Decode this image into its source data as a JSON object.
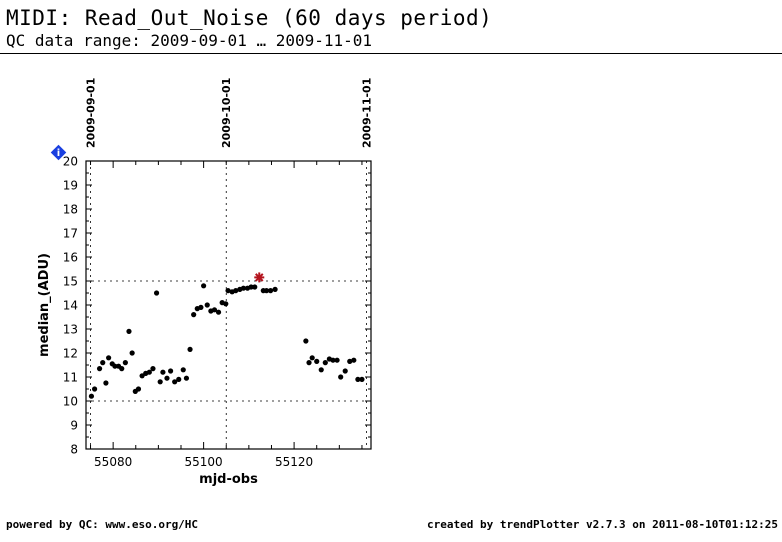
{
  "header": {
    "title": "MIDI: Read_Out_Noise (60 days period)",
    "subtitle": "QC data range: 2009-09-01 … 2009-11-01"
  },
  "footer": {
    "left": "powered by QC: www.eso.org/HC",
    "right": "created by trendPlotter v2.7.3 on 2011-08-10T01:12:25"
  },
  "info_badge": {
    "icon": "info-diamond-icon",
    "label": "i",
    "color": "#1a3fe0"
  },
  "chart_data": {
    "type": "scatter",
    "xlabel": "mjd-obs",
    "ylabel": "median_(ADU)",
    "xlim": [
      55074,
      55137
    ],
    "ylim": [
      8,
      20
    ],
    "xticks": [
      55080,
      55100,
      55120
    ],
    "yticks": [
      8,
      9,
      10,
      11,
      12,
      13,
      14,
      15,
      16,
      17,
      18,
      19,
      20
    ],
    "reference_lines_y": [
      10,
      15
    ],
    "date_markers": [
      {
        "label": "2009-09-01",
        "x": 55075.0
      },
      {
        "label": "2009-10-01",
        "x": 55105.0
      },
      {
        "label": "2009-11-01",
        "x": 55136.0
      }
    ],
    "series": [
      {
        "marker": "dot",
        "color": "#000000",
        "x": [
          55075.2,
          55075.9,
          55077.0,
          55077.7,
          55078.4,
          55079.0,
          55079.8,
          55080.4,
          55081.2,
          55081.9,
          55082.7,
          55083.5,
          55084.2,
          55084.9,
          55085.6,
          55086.4,
          55087.2,
          55088.0,
          55088.8,
          55089.6,
          55090.4,
          55091.0,
          55091.9,
          55092.7,
          55093.6,
          55094.5,
          55095.5,
          55096.2,
          55097.0,
          55097.8,
          55098.6,
          55099.4,
          55100.0,
          55100.8,
          55101.6,
          55102.4,
          55103.3,
          55104.1,
          55104.9,
          55105.4,
          55106.3,
          55107.1,
          55108.0,
          55108.8,
          55109.7,
          55110.5,
          55111.3,
          55113.2,
          55113.9,
          55114.8,
          55115.8,
          55122.6,
          55123.3,
          55124.0,
          55125.0,
          55126.0,
          55126.9,
          55127.8,
          55128.6,
          55129.5,
          55130.3,
          55131.3,
          55132.3,
          55133.2,
          55134.1,
          55135.0
        ],
        "y": [
          10.2,
          10.5,
          11.35,
          11.6,
          10.75,
          11.8,
          11.55,
          11.45,
          11.45,
          11.35,
          11.6,
          12.9,
          12.0,
          10.4,
          10.5,
          11.05,
          11.15,
          11.2,
          11.35,
          14.5,
          10.8,
          11.2,
          10.95,
          11.25,
          10.8,
          10.9,
          11.3,
          10.95,
          12.15,
          13.6,
          13.85,
          13.9,
          14.8,
          14.0,
          13.75,
          13.8,
          13.7,
          14.1,
          14.05,
          14.6,
          14.55,
          14.6,
          14.65,
          14.7,
          14.7,
          14.75,
          14.75,
          14.6,
          14.6,
          14.6,
          14.65,
          12.5,
          11.6,
          11.8,
          11.65,
          11.3,
          11.6,
          11.75,
          11.7,
          11.7,
          11.0,
          11.25,
          11.65,
          11.7,
          10.9,
          10.9
        ]
      },
      {
        "marker": "star",
        "color": "#b4141e",
        "x": [
          55112.3
        ],
        "y": [
          15.15
        ]
      }
    ]
  }
}
